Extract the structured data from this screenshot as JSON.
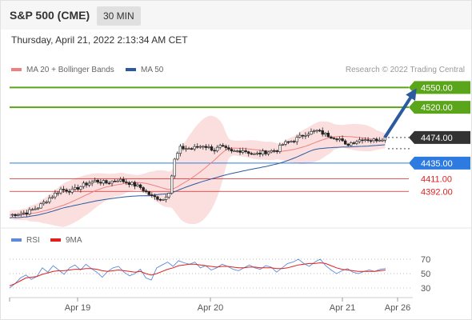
{
  "header": {
    "title": "S&P 500 (CME)",
    "timeframe": "30 MIN"
  },
  "timestamp": "Thursday, April 21, 2022 2:13:34 AM CET",
  "credit": "Research © 2022 Trading Central",
  "colors": {
    "resistance": "#5aa51a",
    "pivot": "#333333",
    "support_blue": "#2d7be0",
    "support_red": "#e02020",
    "bollinger": "#f7c4c4",
    "ma20": "#f08080",
    "ma50": "#2b5a9e",
    "rsi": "#5b8bd9",
    "rsi_ma": "#e02020",
    "arrow": "#2b5a9e"
  },
  "chart_data": [
    {
      "type": "candlestick",
      "legend": [
        "MA 20 + Bollinger Bands",
        "MA 50"
      ],
      "x_ticks": [
        "Apr 19",
        "Apr 20",
        "Apr 21",
        "Apr 26"
      ],
      "ylim": [
        4340,
        4570
      ],
      "levels": [
        {
          "value": 4550.0,
          "label": "4550.00",
          "kind": "resistance"
        },
        {
          "value": 4520.0,
          "label": "4520.00",
          "kind": "resistance"
        },
        {
          "value": 4474.0,
          "label": "4474.00",
          "kind": "pivot"
        },
        {
          "value": 4435.0,
          "label": "4435.00",
          "kind": "support_blue"
        },
        {
          "value": 4411.0,
          "label": "4411.00",
          "kind": "support_red"
        },
        {
          "value": 4392.0,
          "label": "4392.00",
          "kind": "support_red"
        }
      ],
      "price_path": [
        [
          0,
          4356
        ],
        [
          6,
          4360
        ],
        [
          10,
          4368
        ],
        [
          14,
          4382
        ],
        [
          18,
          4395
        ],
        [
          22,
          4393
        ],
        [
          26,
          4402
        ],
        [
          30,
          4408
        ],
        [
          34,
          4405
        ],
        [
          38,
          4410
        ],
        [
          42,
          4405
        ],
        [
          46,
          4398
        ],
        [
          50,
          4384
        ],
        [
          54,
          4380
        ],
        [
          56,
          4392
        ],
        [
          58,
          4440
        ],
        [
          60,
          4458
        ],
        [
          64,
          4457
        ],
        [
          68,
          4462
        ],
        [
          72,
          4455
        ],
        [
          74,
          4460
        ],
        [
          78,
          4452
        ],
        [
          82,
          4455
        ],
        [
          86,
          4448
        ],
        [
          90,
          4452
        ],
        [
          94,
          4455
        ],
        [
          96,
          4464
        ],
        [
          100,
          4470
        ],
        [
          104,
          4480
        ],
        [
          108,
          4484
        ],
        [
          112,
          4477
        ],
        [
          116,
          4472
        ],
        [
          118,
          4462
        ],
        [
          120,
          4466
        ],
        [
          124,
          4472
        ],
        [
          128,
          4470
        ],
        [
          132,
          4474
        ]
      ],
      "forecast": [
        [
          133,
          4474
        ],
        [
          141,
          4550
        ]
      ]
    },
    {
      "type": "line",
      "legend": [
        "RSI",
        "9MA"
      ],
      "x_ticks": [
        "Apr 19",
        "Apr 20",
        "Apr 21",
        "Apr 26"
      ],
      "y_ticks": [
        70,
        50,
        30
      ],
      "ylim": [
        20,
        80
      ],
      "rsi": [
        30,
        36,
        44,
        48,
        42,
        46,
        58,
        52,
        61,
        55,
        49,
        58,
        62,
        55,
        63,
        57,
        52,
        45,
        53,
        58,
        60,
        52,
        47,
        50,
        56,
        44,
        41,
        58,
        62,
        66,
        60,
        68,
        65,
        63,
        66,
        58,
        61,
        55,
        58,
        63,
        60,
        56,
        54,
        58,
        62,
        58,
        56,
        61,
        59,
        52,
        58,
        64,
        66,
        70,
        64,
        60,
        66,
        70,
        61,
        55,
        50,
        54,
        57,
        52,
        50,
        53,
        55,
        53,
        56,
        57
      ],
      "rsi_ma": [
        33,
        36,
        40,
        44,
        45,
        46,
        49,
        51,
        53,
        54,
        54,
        55,
        56,
        56,
        57,
        57,
        56,
        54,
        53,
        54,
        55,
        54,
        53,
        52,
        53,
        50,
        48,
        50,
        53,
        56,
        58,
        61,
        62,
        63,
        63,
        62,
        61,
        60,
        59,
        60,
        60,
        59,
        58,
        58,
        59,
        59,
        58,
        58,
        58,
        57,
        57,
        58,
        60,
        62,
        63,
        64,
        64,
        65,
        64,
        61,
        58,
        56,
        55,
        54,
        53,
        53,
        53,
        53,
        54,
        55
      ]
    }
  ]
}
